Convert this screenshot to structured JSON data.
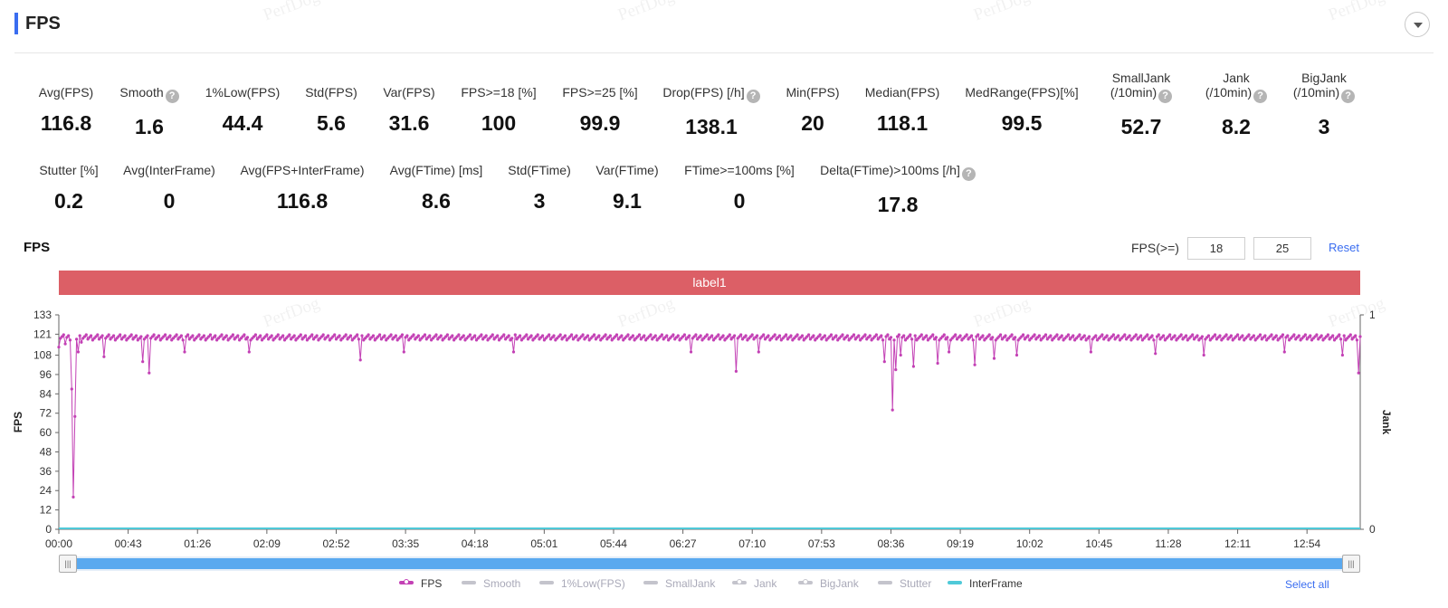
{
  "header": {
    "title": "FPS"
  },
  "watermark": "PerfDog",
  "metrics_row1": [
    {
      "label": "Avg(FPS)",
      "value": "116.8",
      "help": false
    },
    {
      "label": "Smooth",
      "value": "1.6",
      "help": true
    },
    {
      "label": "1%Low(FPS)",
      "value": "44.4",
      "help": false
    },
    {
      "label": "Std(FPS)",
      "value": "5.6",
      "help": false
    },
    {
      "label": "Var(FPS)",
      "value": "31.6",
      "help": false
    },
    {
      "label": "FPS>=18 [%]",
      "value": "100",
      "help": false
    },
    {
      "label": "FPS>=25 [%]",
      "value": "99.9",
      "help": false
    },
    {
      "label": "Drop(FPS) [/h]",
      "value": "138.1",
      "help": true
    },
    {
      "label": "Min(FPS)",
      "value": "20",
      "help": false
    },
    {
      "label": "Median(FPS)",
      "value": "118.1",
      "help": false
    },
    {
      "label": "MedRange(FPS)[%]",
      "value": "99.5",
      "help": false
    },
    {
      "label": "SmallJank",
      "label2": "(/10min)",
      "value": "52.7",
      "help": true
    },
    {
      "label": "Jank",
      "label2": "(/10min)",
      "value": "8.2",
      "help": true
    },
    {
      "label": "BigJank",
      "label2": "(/10min)",
      "value": "3",
      "help": true
    }
  ],
  "metrics_row2": [
    {
      "label": "Stutter [%]",
      "value": "0.2",
      "help": false
    },
    {
      "label": "Avg(InterFrame)",
      "value": "0",
      "help": false
    },
    {
      "label": "Avg(FPS+InterFrame)",
      "value": "116.8",
      "help": false
    },
    {
      "label": "Avg(FTime) [ms]",
      "value": "8.6",
      "help": false
    },
    {
      "label": "Std(FTime)",
      "value": "3",
      "help": false
    },
    {
      "label": "Var(FTime)",
      "value": "9.1",
      "help": false
    },
    {
      "label": "FTime>=100ms [%]",
      "value": "0",
      "help": false
    },
    {
      "label": "Delta(FTime)>100ms [/h]",
      "value": "17.8",
      "help": true
    }
  ],
  "chart_section": {
    "title": "FPS",
    "threshold_label": "FPS(>=)",
    "threshold_low": "18",
    "threshold_high": "25",
    "reset_label": "Reset",
    "label_bar": "label1"
  },
  "chart_data": {
    "type": "line",
    "ylabel": "FPS",
    "y2label": "Jank",
    "ylim": [
      0,
      133
    ],
    "yticks": [
      "133",
      "121",
      "108",
      "96",
      "84",
      "72",
      "60",
      "48",
      "36",
      "24",
      "12",
      "0"
    ],
    "y2ticks": [
      "1",
      "0"
    ],
    "xlim_seconds": [
      0,
      807
    ],
    "xticks": [
      "00:00",
      "00:43",
      "01:26",
      "02:09",
      "02:52",
      "03:35",
      "04:18",
      "05:01",
      "05:44",
      "06:27",
      "07:10",
      "07:53",
      "08:36",
      "09:19",
      "10:02",
      "10:45",
      "11:28",
      "12:11",
      "12:54"
    ],
    "series": [
      {
        "name": "FPS",
        "color": "#c341b5",
        "baseline": 119,
        "dips": [
          {
            "t": 0,
            "v": 113
          },
          {
            "t": 4,
            "v": 115
          },
          {
            "t": 8,
            "v": 87
          },
          {
            "t": 9,
            "v": 20
          },
          {
            "t": 10,
            "v": 70
          },
          {
            "t": 12,
            "v": 110
          },
          {
            "t": 14,
            "v": 116
          },
          {
            "t": 28,
            "v": 107
          },
          {
            "t": 52,
            "v": 104
          },
          {
            "t": 56,
            "v": 97
          },
          {
            "t": 78,
            "v": 110
          },
          {
            "t": 118,
            "v": 110
          },
          {
            "t": 187,
            "v": 105
          },
          {
            "t": 214,
            "v": 110
          },
          {
            "t": 282,
            "v": 110
          },
          {
            "t": 392,
            "v": 110
          },
          {
            "t": 420,
            "v": 98
          },
          {
            "t": 434,
            "v": 110
          },
          {
            "t": 512,
            "v": 104
          },
          {
            "t": 517,
            "v": 74
          },
          {
            "t": 519,
            "v": 99
          },
          {
            "t": 522,
            "v": 108
          },
          {
            "t": 530,
            "v": 101
          },
          {
            "t": 545,
            "v": 103
          },
          {
            "t": 552,
            "v": 110
          },
          {
            "t": 568,
            "v": 102
          },
          {
            "t": 580,
            "v": 106
          },
          {
            "t": 594,
            "v": 108
          },
          {
            "t": 640,
            "v": 110
          },
          {
            "t": 680,
            "v": 109
          },
          {
            "t": 710,
            "v": 108
          },
          {
            "t": 760,
            "v": 110
          },
          {
            "t": 796,
            "v": 108
          },
          {
            "t": 806,
            "v": 97
          }
        ]
      },
      {
        "name": "InterFrame",
        "color": "#4fc9d8",
        "constant": 0
      }
    ]
  },
  "legend": [
    {
      "label": "FPS",
      "active": true,
      "swatch": "fps"
    },
    {
      "label": "Smooth",
      "active": false,
      "swatch": "line"
    },
    {
      "label": "1%Low(FPS)",
      "active": false,
      "swatch": "line"
    },
    {
      "label": "SmallJank",
      "active": false,
      "swatch": "line"
    },
    {
      "label": "Jank",
      "active": false,
      "swatch": "ring"
    },
    {
      "label": "BigJank",
      "active": false,
      "swatch": "ring"
    },
    {
      "label": "Stutter",
      "active": false,
      "swatch": "line"
    },
    {
      "label": "InterFrame",
      "active": true,
      "swatch": "inter"
    }
  ],
  "select_all_label": "Select all"
}
